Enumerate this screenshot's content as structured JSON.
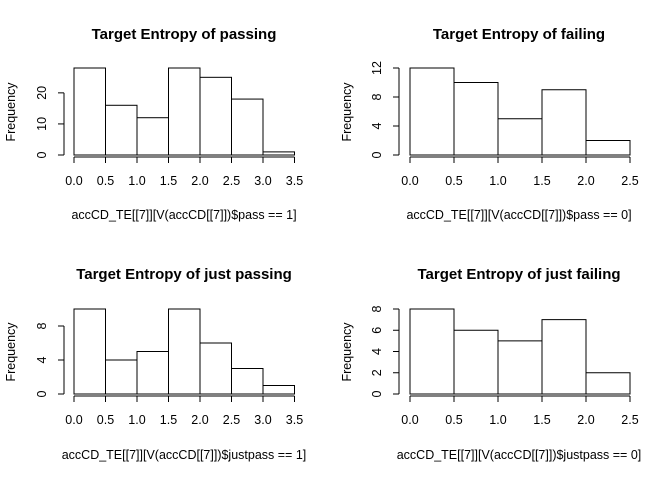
{
  "chart_data": [
    {
      "type": "bar",
      "title": "Target Entropy of passing",
      "xlabel": "accCD_TE[[7]][V(accCD[[7]])$pass == 1]",
      "ylabel": "Frequency",
      "breaks": [
        0.0,
        0.5,
        1.0,
        1.5,
        2.0,
        2.5,
        3.0,
        3.5
      ],
      "values": [
        28,
        16,
        12,
        28,
        25,
        18,
        1
      ],
      "x_ticks": [
        "0.0",
        "0.5",
        "1.0",
        "1.5",
        "2.0",
        "2.5",
        "3.0",
        "3.5"
      ],
      "y_ticks": [
        "0",
        "10",
        "20"
      ],
      "ylim": [
        0,
        28
      ]
    },
    {
      "type": "bar",
      "title": "Target Entropy of failing",
      "xlabel": "accCD_TE[[7]][V(accCD[[7]])$pass == 0]",
      "ylabel": "Frequency",
      "breaks": [
        0.0,
        0.5,
        1.0,
        1.5,
        2.0,
        2.5
      ],
      "values": [
        12,
        10,
        5,
        9,
        2
      ],
      "x_ticks": [
        "0.0",
        "0.5",
        "1.0",
        "1.5",
        "2.0",
        "2.5"
      ],
      "y_ticks": [
        "0",
        "4",
        "8",
        "12"
      ],
      "ylim": [
        0,
        12
      ]
    },
    {
      "type": "bar",
      "title": "Target Entropy of just passing",
      "xlabel": "accCD_TE[[7]][V(accCD[[7]])$justpass == 1]",
      "ylabel": "Frequency",
      "breaks": [
        0.0,
        0.5,
        1.0,
        1.5,
        2.0,
        2.5,
        3.0,
        3.5
      ],
      "values": [
        10,
        4,
        5,
        10,
        6,
        3,
        1
      ],
      "x_ticks": [
        "0.0",
        "0.5",
        "1.0",
        "1.5",
        "2.0",
        "2.5",
        "3.0",
        "3.5"
      ],
      "y_ticks": [
        "0",
        "4",
        "8"
      ],
      "ylim": [
        0,
        10
      ]
    },
    {
      "type": "bar",
      "title": "Target Entropy of just failing",
      "xlabel": "accCD_TE[[7]][V(accCD[[7]])$justpass == 0]",
      "ylabel": "Frequency",
      "breaks": [
        0.0,
        0.5,
        1.0,
        1.5,
        2.0,
        2.5
      ],
      "values": [
        8,
        6,
        5,
        7,
        2
      ],
      "x_ticks": [
        "0.0",
        "0.5",
        "1.0",
        "1.5",
        "2.0",
        "2.5"
      ],
      "y_ticks": [
        "0",
        "2",
        "4",
        "6",
        "8"
      ],
      "ylim": [
        0,
        8
      ]
    }
  ]
}
